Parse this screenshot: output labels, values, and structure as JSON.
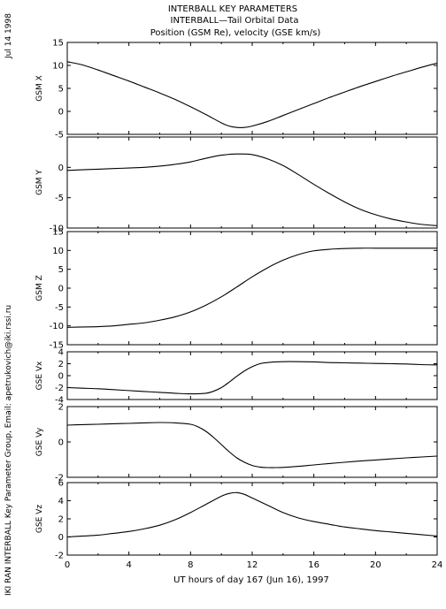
{
  "header": {
    "line1": "INTERBALL KEY PARAMETERS",
    "line2": "INTERBALL—Tail Orbital Data",
    "line3": "Position (GSM Re), velocity (GSE km/s)"
  },
  "side_text": {
    "date": "Jul 14 1998",
    "credit": "IKI RAN INTERBALL Key Parameter Group, Email: apetrukovich@iki.rssi.ru"
  },
  "chart_data": {
    "type": "line",
    "xlabel": "UT hours of day 167 (Jun 16), 1997",
    "xlim": [
      0,
      24
    ],
    "xticks": [
      0,
      4,
      8,
      12,
      16,
      20,
      24
    ],
    "panels": [
      {
        "ylabel": "GSM X",
        "ylim": [
          -5,
          15
        ],
        "yticks": [
          -5,
          0,
          5,
          10,
          15
        ],
        "x": [
          0,
          1,
          2,
          3,
          4,
          5,
          6,
          7,
          8,
          9,
          10,
          10.5,
          11,
          11.5,
          12,
          13,
          14,
          15,
          16,
          17,
          18,
          19,
          20,
          21,
          22,
          23,
          24
        ],
        "values": [
          10.8,
          10.1,
          9.0,
          7.8,
          6.6,
          5.3,
          4.0,
          2.6,
          1.0,
          -0.7,
          -2.5,
          -3.2,
          -3.5,
          -3.5,
          -3.2,
          -2.2,
          -0.9,
          0.4,
          1.7,
          3.0,
          4.2,
          5.4,
          6.5,
          7.6,
          8.6,
          9.6,
          10.5
        ]
      },
      {
        "ylabel": "GSM Y",
        "ylim": [
          -10,
          5
        ],
        "yticks": [
          -10,
          -5,
          0
        ],
        "x": [
          0,
          1,
          2,
          3,
          4,
          5,
          6,
          7,
          8,
          9,
          10,
          11,
          12,
          13,
          14,
          15,
          16,
          17,
          18,
          19,
          20,
          21,
          22,
          23,
          24
        ],
        "values": [
          -0.5,
          -0.4,
          -0.3,
          -0.2,
          -0.1,
          0.0,
          0.2,
          0.5,
          0.9,
          1.5,
          2.0,
          2.2,
          2.1,
          1.4,
          0.3,
          -1.2,
          -2.8,
          -4.3,
          -5.7,
          -6.9,
          -7.8,
          -8.5,
          -9.0,
          -9.4,
          -9.6
        ]
      },
      {
        "ylabel": "GSM Z",
        "ylim": [
          -15,
          15
        ],
        "yticks": [
          -15,
          -10,
          -5,
          0,
          5,
          10,
          15
        ],
        "x": [
          0,
          1,
          2,
          3,
          4,
          5,
          6,
          7,
          8,
          9,
          10,
          11,
          12,
          13,
          14,
          15,
          16,
          17,
          18,
          19,
          20,
          21,
          22,
          23,
          24
        ],
        "values": [
          -10.4,
          -10.3,
          -10.2,
          -10.0,
          -9.6,
          -9.2,
          -8.5,
          -7.6,
          -6.3,
          -4.5,
          -2.3,
          0.3,
          3.0,
          5.4,
          7.4,
          8.9,
          9.9,
          10.3,
          10.5,
          10.6,
          10.6,
          10.6,
          10.6,
          10.6,
          10.6
        ]
      },
      {
        "ylabel": "GSE Vx",
        "ylim": [
          -4,
          4
        ],
        "yticks": [
          -4,
          -2,
          0,
          2,
          4
        ],
        "x": [
          0,
          1,
          2,
          3,
          4,
          5,
          6,
          7,
          8,
          9,
          9.5,
          10,
          10.5,
          11,
          11.5,
          12,
          12.5,
          13,
          13.5,
          14,
          15,
          16,
          17,
          18,
          19,
          20,
          21,
          22,
          23,
          24
        ],
        "values": [
          -2.0,
          -2.1,
          -2.2,
          -2.35,
          -2.5,
          -2.65,
          -2.8,
          -2.95,
          -3.05,
          -2.95,
          -2.6,
          -2.0,
          -1.1,
          -0.1,
          0.8,
          1.5,
          2.0,
          2.2,
          2.3,
          2.35,
          2.35,
          2.3,
          2.2,
          2.15,
          2.1,
          2.05,
          2.0,
          1.95,
          1.85,
          1.8
        ]
      },
      {
        "ylabel": "GSE Vy",
        "ylim": [
          -2,
          2
        ],
        "yticks": [
          -2,
          0,
          2
        ],
        "x": [
          0,
          1,
          2,
          3,
          4,
          5,
          6,
          7,
          8,
          8.5,
          9,
          9.5,
          10,
          10.5,
          11,
          11.5,
          12,
          12.5,
          13,
          13.5,
          14,
          15,
          16,
          17,
          18,
          19,
          20,
          21,
          22,
          23,
          24
        ],
        "values": [
          0.95,
          0.98,
          1.0,
          1.03,
          1.05,
          1.08,
          1.1,
          1.08,
          1.0,
          0.85,
          0.6,
          0.25,
          -0.15,
          -0.55,
          -0.9,
          -1.15,
          -1.33,
          -1.42,
          -1.45,
          -1.45,
          -1.44,
          -1.38,
          -1.3,
          -1.22,
          -1.15,
          -1.08,
          -1.02,
          -0.96,
          -0.9,
          -0.85,
          -0.8
        ]
      },
      {
        "ylabel": "GSE Vz",
        "ylim": [
          -2,
          6
        ],
        "yticks": [
          -2,
          0,
          2,
          4,
          6
        ],
        "x": [
          0,
          1,
          2,
          3,
          4,
          5,
          6,
          7,
          8,
          9,
          10,
          10.5,
          11,
          11.5,
          12,
          13,
          14,
          15,
          16,
          17,
          18,
          19,
          20,
          21,
          22,
          23,
          24
        ],
        "values": [
          0.0,
          0.1,
          0.2,
          0.4,
          0.6,
          0.9,
          1.3,
          1.9,
          2.7,
          3.6,
          4.5,
          4.8,
          4.9,
          4.7,
          4.3,
          3.5,
          2.7,
          2.1,
          1.7,
          1.4,
          1.1,
          0.9,
          0.7,
          0.55,
          0.4,
          0.25,
          0.1
        ]
      }
    ]
  }
}
